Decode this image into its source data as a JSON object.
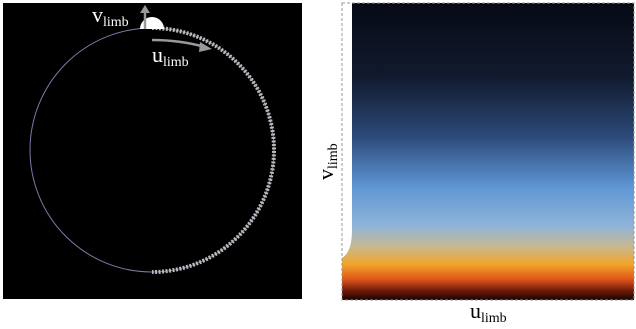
{
  "left_panel": {
    "v_label": {
      "main": "v",
      "sub": "limb"
    },
    "u_label": {
      "main": "u",
      "sub": "limb"
    }
  },
  "right_panel": {
    "y_axis_label": {
      "main": "v",
      "sub": "limb"
    },
    "x_axis_label": {
      "main": "u",
      "sub": "limb"
    }
  }
}
